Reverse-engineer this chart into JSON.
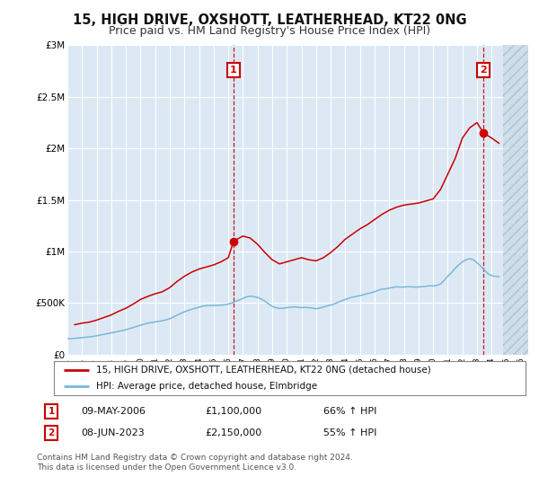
{
  "title": "15, HIGH DRIVE, OXSHOTT, LEATHERHEAD, KT22 0NG",
  "subtitle": "Price paid vs. HM Land Registry's House Price Index (HPI)",
  "title_fontsize": 10.5,
  "subtitle_fontsize": 9,
  "ylabel_ticks": [
    "£0",
    "£500K",
    "£1M",
    "£1.5M",
    "£2M",
    "£2.5M",
    "£3M"
  ],
  "ytick_values": [
    0,
    500000,
    1000000,
    1500000,
    2000000,
    2500000,
    3000000
  ],
  "ylim": [
    0,
    3000000
  ],
  "xlim_start": 1995.0,
  "xlim_end": 2026.5,
  "data_end_x": 2024.75,
  "xtick_years": [
    1995,
    1996,
    1997,
    1998,
    1999,
    2000,
    2001,
    2002,
    2003,
    2004,
    2005,
    2006,
    2007,
    2008,
    2009,
    2010,
    2011,
    2012,
    2013,
    2014,
    2015,
    2016,
    2017,
    2018,
    2019,
    2020,
    2021,
    2022,
    2023,
    2024,
    2025,
    2026
  ],
  "sale1_x": 2006.36,
  "sale1_y": 1100000,
  "sale1_label": "1",
  "sale2_x": 2023.44,
  "sale2_y": 2150000,
  "sale2_label": "2",
  "vline1_x": 2006.36,
  "vline2_x": 2023.44,
  "hpi_color": "#7ab8d9",
  "price_color": "#cc0000",
  "sale_marker_color": "#cc0000",
  "background_color": "#ffffff",
  "plot_bg_color": "#dce9f5",
  "grid_color": "#ffffff",
  "hatch_color": "#c0cdd8",
  "legend_line1": "15, HIGH DRIVE, OXSHOTT, LEATHERHEAD, KT22 0NG (detached house)",
  "legend_line2": "HPI: Average price, detached house, Elmbridge",
  "annotation1_label": "09-MAY-2006",
  "annotation1_price": "£1,100,000",
  "annotation1_hpi": "66% ↑ HPI",
  "annotation2_label": "08-JUN-2023",
  "annotation2_price": "£2,150,000",
  "annotation2_hpi": "55% ↑ HPI",
  "footer": "Contains HM Land Registry data © Crown copyright and database right 2024.\nThis data is licensed under the Open Government Licence v3.0.",
  "hpi_data_x": [
    1995.0,
    1995.25,
    1995.5,
    1995.75,
    1996.0,
    1996.25,
    1996.5,
    1996.75,
    1997.0,
    1997.25,
    1997.5,
    1997.75,
    1998.0,
    1998.25,
    1998.5,
    1998.75,
    1999.0,
    1999.25,
    1999.5,
    1999.75,
    2000.0,
    2000.25,
    2000.5,
    2000.75,
    2001.0,
    2001.25,
    2001.5,
    2001.75,
    2002.0,
    2002.25,
    2002.5,
    2002.75,
    2003.0,
    2003.25,
    2003.5,
    2003.75,
    2004.0,
    2004.25,
    2004.5,
    2004.75,
    2005.0,
    2005.25,
    2005.5,
    2005.75,
    2006.0,
    2006.25,
    2006.5,
    2006.75,
    2007.0,
    2007.25,
    2007.5,
    2007.75,
    2008.0,
    2008.25,
    2008.5,
    2008.75,
    2009.0,
    2009.25,
    2009.5,
    2009.75,
    2010.0,
    2010.25,
    2010.5,
    2010.75,
    2011.0,
    2011.25,
    2011.5,
    2011.75,
    2012.0,
    2012.25,
    2012.5,
    2012.75,
    2013.0,
    2013.25,
    2013.5,
    2013.75,
    2014.0,
    2014.25,
    2014.5,
    2014.75,
    2015.0,
    2015.25,
    2015.5,
    2015.75,
    2016.0,
    2016.25,
    2016.5,
    2016.75,
    2017.0,
    2017.25,
    2017.5,
    2017.75,
    2018.0,
    2018.25,
    2018.5,
    2018.75,
    2019.0,
    2019.25,
    2019.5,
    2019.75,
    2020.0,
    2020.25,
    2020.5,
    2020.75,
    2021.0,
    2021.25,
    2021.5,
    2021.75,
    2022.0,
    2022.25,
    2022.5,
    2022.75,
    2023.0,
    2023.25,
    2023.5,
    2023.75,
    2024.0,
    2024.25,
    2024.5
  ],
  "hpi_data_y": [
    155000,
    155000,
    158000,
    161000,
    165000,
    168000,
    172000,
    177000,
    182000,
    190000,
    197000,
    204000,
    211000,
    218000,
    226000,
    233000,
    241000,
    252000,
    263000,
    274000,
    285000,
    296000,
    305000,
    311000,
    317000,
    323000,
    330000,
    337000,
    348000,
    365000,
    382000,
    399000,
    415000,
    428000,
    440000,
    450000,
    460000,
    470000,
    475000,
    476000,
    477000,
    477000,
    480000,
    484000,
    490000,
    500000,
    515000,
    530000,
    545000,
    560000,
    567000,
    563000,
    555000,
    540000,
    518000,
    492000,
    468000,
    455000,
    448000,
    450000,
    455000,
    460000,
    462000,
    460000,
    455000,
    458000,
    455000,
    450000,
    445000,
    452000,
    462000,
    472000,
    480000,
    492000,
    507000,
    522000,
    535000,
    548000,
    558000,
    565000,
    572000,
    582000,
    592000,
    600000,
    610000,
    625000,
    635000,
    638000,
    645000,
    652000,
    658000,
    655000,
    655000,
    658000,
    658000,
    655000,
    655000,
    660000,
    662000,
    668000,
    665000,
    672000,
    685000,
    720000,
    760000,
    795000,
    835000,
    870000,
    900000,
    920000,
    930000,
    920000,
    890000,
    858000,
    820000,
    785000,
    765000,
    760000,
    755000
  ],
  "price_data_x": [
    1995.5,
    1996.0,
    1996.5,
    1997.0,
    1997.5,
    1998.0,
    1998.5,
    1999.0,
    1999.5,
    2000.0,
    2000.5,
    2001.0,
    2001.5,
    2002.0,
    2002.5,
    2003.0,
    2003.5,
    2004.0,
    2004.5,
    2005.0,
    2005.5,
    2006.0,
    2006.36,
    2007.0,
    2007.5,
    2008.0,
    2008.5,
    2009.0,
    2009.5,
    2010.0,
    2010.5,
    2011.0,
    2011.5,
    2012.0,
    2012.5,
    2013.0,
    2013.5,
    2014.0,
    2014.5,
    2015.0,
    2015.5,
    2016.0,
    2016.5,
    2017.0,
    2017.5,
    2018.0,
    2018.5,
    2019.0,
    2019.5,
    2020.0,
    2020.5,
    2021.0,
    2021.5,
    2022.0,
    2022.5,
    2023.0,
    2023.44,
    2024.0,
    2024.5
  ],
  "price_data_y": [
    290000,
    305000,
    315000,
    335000,
    360000,
    385000,
    420000,
    450000,
    490000,
    535000,
    565000,
    590000,
    610000,
    650000,
    710000,
    760000,
    800000,
    830000,
    850000,
    870000,
    900000,
    940000,
    1100000,
    1150000,
    1130000,
    1070000,
    990000,
    920000,
    880000,
    900000,
    920000,
    940000,
    920000,
    910000,
    940000,
    990000,
    1050000,
    1120000,
    1170000,
    1220000,
    1260000,
    1310000,
    1360000,
    1400000,
    1430000,
    1450000,
    1460000,
    1470000,
    1490000,
    1510000,
    1600000,
    1750000,
    1900000,
    2100000,
    2200000,
    2250000,
    2150000,
    2100000,
    2050000
  ]
}
